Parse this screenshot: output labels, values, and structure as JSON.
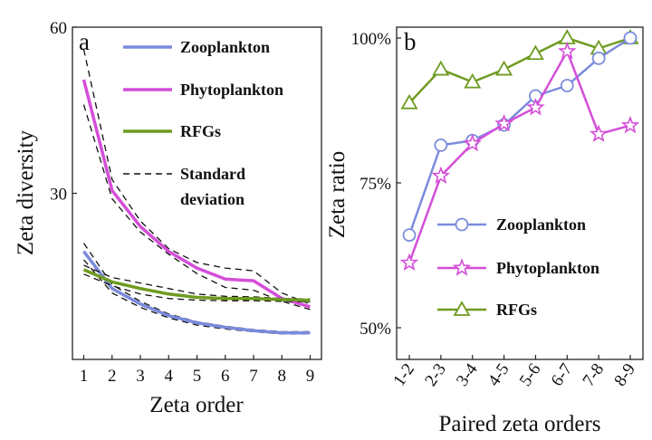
{
  "chart_data": [
    {
      "panel_label": "a",
      "type": "line",
      "xlabel": "Zeta order",
      "ylabel": "Zeta diversity",
      "x": [
        1,
        2,
        3,
        4,
        5,
        6,
        7,
        8,
        9
      ],
      "xticks": [
        "1",
        "2",
        "3",
        "4",
        "5",
        "6",
        "7",
        "8",
        "9"
      ],
      "yticks": [
        "30",
        "60"
      ],
      "xlim": [
        0.6,
        9.4
      ],
      "ylim": [
        0,
        60
      ],
      "legend_position": "top-right",
      "series": [
        {
          "name": "Zooplankton",
          "color": "#7b8bdc",
          "values": [
            19.5,
            12.8,
            10.0,
            7.9,
            6.6,
            5.8,
            5.2,
            4.8,
            4.8
          ],
          "sd_upper": [
            21.0,
            13.5,
            10.5,
            8.2,
            6.8,
            6.0,
            5.4,
            5.0,
            5.0
          ],
          "sd_lower": [
            18.0,
            12.0,
            9.4,
            7.5,
            6.2,
            5.5,
            5.0,
            4.6,
            4.6
          ]
        },
        {
          "name": "Phytoplankton",
          "color": "#d44ed8",
          "values": [
            50.5,
            30.5,
            24.0,
            19.5,
            16.5,
            14.5,
            14.2,
            11.0,
            9.5
          ],
          "sd_upper": [
            56.0,
            32.5,
            25.0,
            20.0,
            17.5,
            16.5,
            16.0,
            12.0,
            10.0
          ],
          "sd_lower": [
            46.0,
            29.0,
            23.0,
            19.0,
            15.5,
            13.0,
            12.5,
            10.5,
            9.0
          ]
        },
        {
          "name": "RFGs",
          "color": "#6e9b20",
          "values": [
            16.2,
            14.0,
            12.8,
            11.8,
            11.2,
            11.0,
            11.0,
            10.8,
            10.7
          ],
          "sd_upper": [
            17.0,
            14.8,
            13.8,
            12.8,
            11.8,
            11.4,
            11.3,
            11.0,
            10.9
          ],
          "sd_lower": [
            15.4,
            13.3,
            11.8,
            11.0,
            10.7,
            10.6,
            10.6,
            10.5,
            10.4
          ]
        }
      ],
      "sd_legend": "Standard deviation"
    },
    {
      "panel_label": "b",
      "type": "line",
      "xlabel": "Paired zeta orders",
      "ylabel": "Zeta ratio",
      "categories": [
        "1-2",
        "2-3",
        "3-4",
        "4-5",
        "5-6",
        "6-7",
        "7-8",
        "8-9"
      ],
      "yticks": [
        "50%",
        "75%",
        "100%"
      ],
      "ylim": [
        45,
        100
      ],
      "legend_position": "lower-left",
      "series": [
        {
          "name": "Zooplankton",
          "color": "#7b8bdc",
          "marker": "circle",
          "values": [
            66.0,
            81.5,
            82.3,
            85.0,
            90.0,
            91.8,
            96.5,
            100.0
          ]
        },
        {
          "name": "Phytoplankton",
          "color": "#d44ed8",
          "marker": "star",
          "values": [
            61.2,
            76.2,
            81.8,
            85.2,
            88.0,
            97.7,
            83.4,
            84.9
          ]
        },
        {
          "name": "RFGs",
          "color": "#6e9b20",
          "marker": "triangle",
          "values": [
            88.8,
            94.6,
            92.4,
            94.6,
            97.3,
            100.0,
            98.2,
            100.0
          ]
        }
      ]
    }
  ]
}
